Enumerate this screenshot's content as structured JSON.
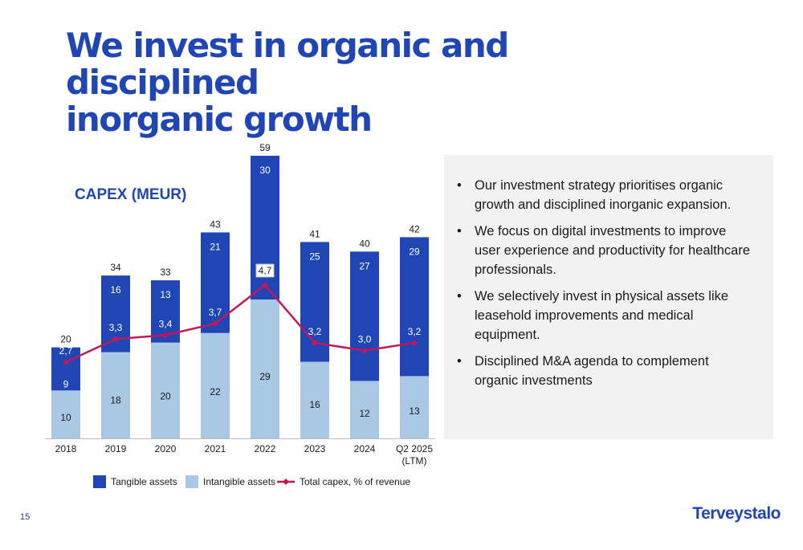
{
  "slide": {
    "title_line1": "We invest in organic and disciplined",
    "title_line2": "inorganic growth",
    "page_number": "15",
    "logo_text": "Terveystalo"
  },
  "bullets": [
    "Our investment strategy prioritises organic growth and disciplined inorganic expansion.",
    "We focus on digital investments to improve user experience and productivity for healthcare professionals.",
    "We selectively invest in physical assets like leasehold improvements and medical equipment.",
    "Disciplined M&A agenda to complement organic investments"
  ],
  "colors": {
    "tangible": "#1f46b4",
    "intangible": "#a9c8e4",
    "line": "#c2185b",
    "title": "#1f46b4"
  },
  "chart_data": {
    "type": "bar",
    "stacked": true,
    "title": "CAPEX (MEUR)",
    "categories": [
      "2018",
      "2019",
      "2020",
      "2021",
      "2022",
      "2023",
      "2024",
      "Q2 2025\n(LTM)"
    ],
    "series": [
      {
        "name": "Tangible assets",
        "values": [
          9,
          16,
          13,
          21,
          30,
          25,
          27,
          29
        ]
      },
      {
        "name": "Intangible assets",
        "values": [
          10,
          18,
          20,
          22,
          29,
          16,
          12,
          13
        ]
      }
    ],
    "totals": [
      20,
      34,
      33,
      43,
      59,
      41,
      40,
      42
    ],
    "line_series": {
      "name": "Total capex, % of revenue",
      "values": [
        2.7,
        3.3,
        3.4,
        3.7,
        4.7,
        3.2,
        3.0,
        3.2
      ],
      "labels": [
        "2,7",
        "3,3",
        "3,4",
        "3,7",
        "4,7",
        "3,2",
        "3,0",
        "3,2"
      ]
    },
    "ylim": [
      0,
      60
    ],
    "grid": false,
    "legend_position": "bottom"
  }
}
